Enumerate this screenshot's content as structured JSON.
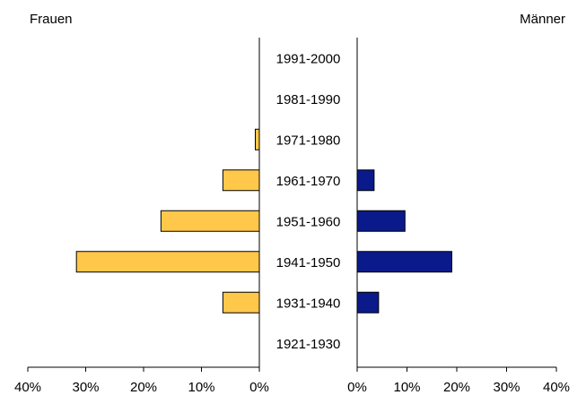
{
  "chart_data": {
    "type": "bar",
    "subtype": "population-pyramid",
    "categories": [
      "1991-2000",
      "1981-1990",
      "1971-1980",
      "1961-1970",
      "1951-1960",
      "1941-1950",
      "1931-1940",
      "1921-1930"
    ],
    "series": [
      {
        "name": "Frauen",
        "side": "left",
        "values": [
          0,
          0,
          0.7,
          6.3,
          17.0,
          31.6,
          6.3,
          0
        ]
      },
      {
        "name": "Männer",
        "side": "right",
        "values": [
          0,
          0,
          0,
          3.4,
          9.6,
          19.0,
          4.3,
          0
        ]
      }
    ],
    "left_title": "Frauen",
    "right_title": "Männer",
    "x_unit": "%",
    "xlim": [
      0,
      40
    ],
    "left_ticks": [
      "40%",
      "30%",
      "20%",
      "10%",
      "0%"
    ],
    "right_ticks": [
      "0%",
      "10%",
      "20%",
      "30%",
      "40%"
    ],
    "tick_values_left": [
      40,
      30,
      20,
      10,
      0
    ],
    "tick_values_right": [
      0,
      10,
      20,
      30,
      40
    ],
    "grid": false,
    "colors": {
      "Frauen": "#FFC84A",
      "Männer": "#0A1A8A",
      "bar_outline": "#000000"
    }
  }
}
